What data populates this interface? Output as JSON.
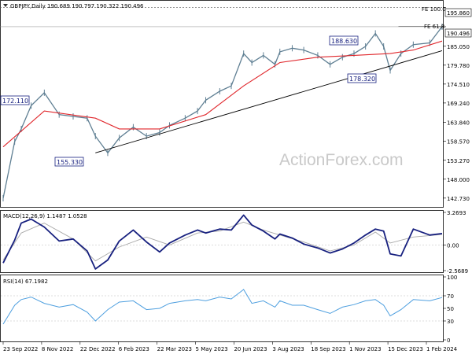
{
  "colors": {
    "price": "#5f7f93",
    "ema": "#e0262b",
    "macd": "#17207f",
    "signal": "#a8a8a8",
    "rsi": "#4e9fdf",
    "trendline": "#000000",
    "box_border": "#17207f",
    "grid": "#dcdcdc"
  },
  "chart_data": [
    {
      "type": "ohlc",
      "title": "GBPJPY,Daily  190.689 190.797 190.322 190.496",
      "ylim": [
        140.5,
        197.5
      ],
      "y_ticks": [
        "195.860",
        "190.496",
        "185.050",
        "179.780",
        "174.510",
        "169.240",
        "163.840",
        "158.570",
        "153.270",
        "148.000",
        "142.730"
      ],
      "y_tick_values": [
        195.86,
        190.496,
        185.05,
        179.78,
        174.51,
        169.24,
        163.84,
        158.57,
        153.27,
        148.0,
        142.73
      ],
      "x_ticks": [
        "23 Sep 2022",
        "8 Nov 2022",
        "22 Dec 2022",
        "6 Feb 2023",
        "22 Mar 2023",
        "5 May 2023",
        "20 Jun 2023",
        "3 Aug 2023",
        "18 Sep 2023",
        "1 Nov 2023",
        "15 Dec 2023",
        "1 Feb 2024"
      ],
      "series": [
        {
          "name": "price",
          "x": [
            "2022-09-01",
            "2022-09-15",
            "2022-09-23",
            "2022-10-05",
            "2022-10-21",
            "2022-11-08",
            "2022-11-25",
            "2022-12-12",
            "2022-12-22",
            "2023-01-06",
            "2023-01-20",
            "2023-02-06",
            "2023-02-22",
            "2023-03-10",
            "2023-03-22",
            "2023-04-10",
            "2023-04-25",
            "2023-05-05",
            "2023-05-22",
            "2023-06-05",
            "2023-06-20",
            "2023-06-30",
            "2023-07-14",
            "2023-07-28",
            "2023-08-03",
            "2023-08-18",
            "2023-09-01",
            "2023-09-18",
            "2023-10-03",
            "2023-10-18",
            "2023-11-01",
            "2023-11-15",
            "2023-11-27",
            "2023-12-07",
            "2023-12-15",
            "2023-12-28",
            "2024-01-12",
            "2024-02-01",
            "2024-02-16"
          ],
          "values": [
            142.7,
            158.5,
            162.0,
            168.5,
            172.1,
            166.0,
            165.5,
            165.0,
            160.0,
            155.33,
            159.5,
            162.5,
            160.0,
            161.0,
            163.0,
            165.0,
            167.0,
            170.0,
            172.5,
            174.0,
            183.0,
            180.5,
            182.5,
            180.0,
            183.5,
            184.5,
            184.0,
            182.5,
            180.0,
            182.0,
            183.0,
            185.0,
            188.63,
            185.0,
            178.32,
            183.0,
            185.5,
            186.0,
            190.496
          ]
        },
        {
          "name": "ema",
          "x": [
            "2022-09-01",
            "2022-10-21",
            "2022-12-22",
            "2023-01-20",
            "2023-03-10",
            "2023-05-05",
            "2023-06-20",
            "2023-08-03",
            "2023-09-18",
            "2023-11-01",
            "2023-12-15",
            "2024-01-12",
            "2024-02-16"
          ],
          "values": [
            157.0,
            167.0,
            165.0,
            162.0,
            162.0,
            166.0,
            174.0,
            180.5,
            182.0,
            182.5,
            183.0,
            184.0,
            186.5
          ]
        },
        {
          "name": "trendline",
          "x": [
            "2022-12-22",
            "2024-02-16"
          ],
          "values": [
            155.33,
            183.8
          ]
        },
        {
          "name": "fe_100",
          "x": [
            "2022-09-01",
            "2024-02-16"
          ],
          "values": [
            195.86,
            195.86
          ]
        },
        {
          "name": "fe_618",
          "x": [
            "2023-12-25",
            "2024-02-16"
          ],
          "values": [
            190.6,
            190.6
          ]
        }
      ],
      "annotations": [
        "172.110",
        "155.330",
        "188.630",
        "178.320",
        "FE 100.0",
        "FE 61.8",
        "195.860",
        "190.496"
      ],
      "watermark": "ActionForex.com"
    },
    {
      "type": "line",
      "title": "MACD(12,26,9) 1.1487 1.0528",
      "ylim": [
        -2.5689,
        3.2693
      ],
      "y_ticks": [
        "3.2693",
        "0.00",
        "-2.5689"
      ],
      "y_tick_values": [
        3.2693,
        0.0,
        -2.5689
      ],
      "series": [
        {
          "name": "MACD",
          "x": [
            "2022-09-01",
            "2022-09-15",
            "2022-09-23",
            "2022-10-05",
            "2022-10-21",
            "2022-11-08",
            "2022-11-25",
            "2022-12-12",
            "2022-12-22",
            "2023-01-06",
            "2023-01-20",
            "2023-02-06",
            "2023-02-22",
            "2023-03-10",
            "2023-03-22",
            "2023-04-10",
            "2023-04-25",
            "2023-05-05",
            "2023-05-22",
            "2023-06-05",
            "2023-06-20",
            "2023-06-30",
            "2023-07-14",
            "2023-07-28",
            "2023-08-03",
            "2023-08-18",
            "2023-09-01",
            "2023-09-18",
            "2023-10-03",
            "2023-10-18",
            "2023-11-01",
            "2023-11-15",
            "2023-11-27",
            "2023-12-07",
            "2023-12-15",
            "2023-12-28",
            "2024-01-12",
            "2024-02-01",
            "2024-02-16"
          ],
          "values": [
            -1.8,
            0.5,
            2.2,
            2.6,
            1.8,
            0.4,
            0.6,
            -0.6,
            -2.4,
            -1.5,
            0.4,
            1.5,
            0.3,
            -0.7,
            0.2,
            1.0,
            1.5,
            1.2,
            1.6,
            1.5,
            3.0,
            2.0,
            1.4,
            0.6,
            1.1,
            0.7,
            0.1,
            -0.3,
            -0.8,
            -0.4,
            0.2,
            1.0,
            1.6,
            1.4,
            -0.9,
            -1.1,
            1.6,
            1.0,
            1.15
          ]
        },
        {
          "name": "Signal",
          "x": [
            "2022-09-01",
            "2022-09-23",
            "2022-10-21",
            "2022-11-25",
            "2022-12-22",
            "2023-01-20",
            "2023-02-22",
            "2023-03-22",
            "2023-04-25",
            "2023-05-22",
            "2023-06-20",
            "2023-07-14",
            "2023-08-03",
            "2023-09-01",
            "2023-10-03",
            "2023-11-01",
            "2023-11-27",
            "2023-12-15",
            "2024-01-12",
            "2024-02-16"
          ],
          "values": [
            -1.5,
            1.2,
            2.2,
            0.6,
            -1.6,
            -0.2,
            0.8,
            0.0,
            1.2,
            1.4,
            2.3,
            1.5,
            1.0,
            0.3,
            -0.6,
            0.0,
            1.3,
            0.2,
            0.8,
            1.05
          ]
        }
      ]
    },
    {
      "type": "line",
      "title": "RSI(14) 67.1982",
      "ylim": [
        0,
        100
      ],
      "y_ticks": [
        "100",
        "70",
        "50",
        "30",
        "0"
      ],
      "y_tick_values": [
        100,
        70,
        50,
        30,
        0
      ],
      "series": [
        {
          "name": "RSI",
          "x": [
            "2022-09-01",
            "2022-09-15",
            "2022-09-23",
            "2022-10-05",
            "2022-10-21",
            "2022-11-08",
            "2022-11-25",
            "2022-12-12",
            "2022-12-22",
            "2023-01-06",
            "2023-01-20",
            "2023-02-06",
            "2023-02-22",
            "2023-03-10",
            "2023-03-22",
            "2023-04-10",
            "2023-04-25",
            "2023-05-05",
            "2023-05-22",
            "2023-06-05",
            "2023-06-20",
            "2023-06-30",
            "2023-07-14",
            "2023-07-28",
            "2023-08-03",
            "2023-08-18",
            "2023-09-01",
            "2023-09-18",
            "2023-10-03",
            "2023-10-18",
            "2023-11-01",
            "2023-11-15",
            "2023-11-27",
            "2023-12-07",
            "2023-12-15",
            "2023-12-28",
            "2024-01-12",
            "2024-02-01",
            "2024-02-16"
          ],
          "values": [
            25,
            55,
            64,
            68,
            58,
            52,
            56,
            44,
            30,
            48,
            60,
            62,
            48,
            50,
            58,
            62,
            64,
            62,
            68,
            65,
            80,
            58,
            62,
            52,
            62,
            55,
            55,
            48,
            42,
            52,
            56,
            62,
            64,
            55,
            38,
            48,
            64,
            62,
            67.2
          ]
        }
      ]
    }
  ]
}
